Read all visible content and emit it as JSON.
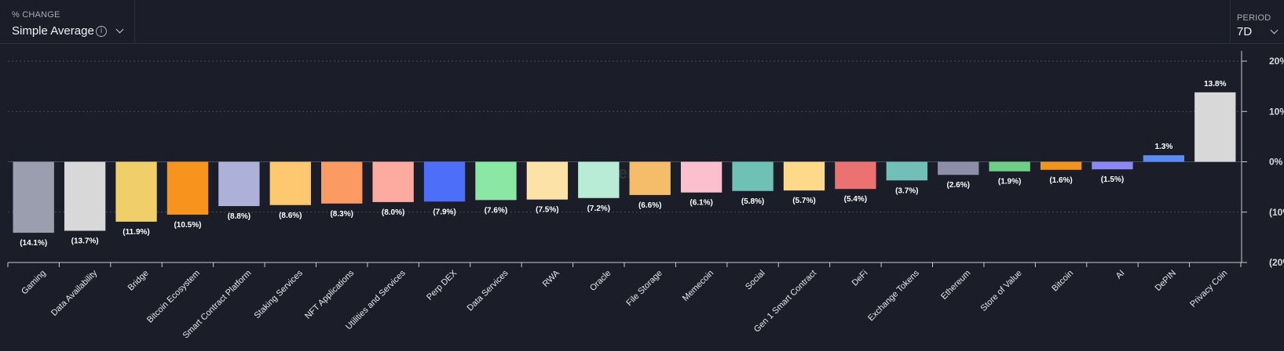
{
  "controls": {
    "change_caption": "% CHANGE",
    "change_value": "Simple Average",
    "info_glyph": "i",
    "period_caption": "PERIOD",
    "period_value": "7D"
  },
  "watermark": "Artemis",
  "colors": {
    "background": "#1b1d29",
    "grid": "#4a4d5c",
    "text": "#e6e7ee"
  },
  "chart_data": {
    "type": "bar",
    "title": "",
    "xlabel": "",
    "ylabel": "",
    "ylim": [
      -20,
      20
    ],
    "y_ticks": [
      20,
      10,
      0,
      -10,
      -20
    ],
    "y_tick_labels": [
      "20%",
      "10%",
      "0%",
      "(10%)",
      "(20%)"
    ],
    "grid": "horizontal dashed",
    "categories": [
      "Gaming",
      "Data Availability",
      "Bridge",
      "Bitcoin Ecosystem",
      "Smart Contract Platform",
      "Staking Services",
      "NFT Applications",
      "Utilities and Services",
      "Perp DEX",
      "Data Services",
      "RWA",
      "Oracle",
      "File Storage",
      "Memecoin",
      "Social",
      "Gen 1 Smart Contract",
      "DeFi",
      "Exchange Tokens",
      "Ethereum",
      "Store of Value",
      "Bitcoin",
      "AI",
      "DePIN",
      "Privacy Coin"
    ],
    "values": [
      -14.1,
      -13.7,
      -11.9,
      -10.5,
      -8.8,
      -8.6,
      -8.3,
      -8.0,
      -7.9,
      -7.6,
      -7.5,
      -7.2,
      -6.6,
      -6.1,
      -5.8,
      -5.7,
      -5.4,
      -3.7,
      -2.6,
      -1.9,
      -1.6,
      -1.5,
      1.3,
      13.8
    ],
    "value_labels": [
      "(14.1%)",
      "(13.7%)",
      "(11.9%)",
      "(10.5%)",
      "(8.8%)",
      "(8.6%)",
      "(8.3%)",
      "(8.0%)",
      "(7.9%)",
      "(7.6%)",
      "(7.5%)",
      "(7.2%)",
      "(6.6%)",
      "(6.1%)",
      "(5.8%)",
      "(5.7%)",
      "(5.4%)",
      "(3.7%)",
      "(2.6%)",
      "(1.9%)",
      "(1.6%)",
      "(1.5%)",
      "1.3%",
      "13.8%"
    ],
    "bar_colors": [
      "#9b9eae",
      "#d8d8d8",
      "#f0cf6b",
      "#f7941d",
      "#adb0d8",
      "#fdc86f",
      "#fb9a63",
      "#fdaba0",
      "#4d6ef8",
      "#8be8a4",
      "#fde2a8",
      "#b8ecd6",
      "#f5bc6a",
      "#fcbfcd",
      "#6ec1b4",
      "#ffd98a",
      "#ec7171",
      "#72bfb7",
      "#8b8fa8",
      "#6fcf86",
      "#f0931f",
      "#8b88f5",
      "#5b8cf3",
      "#d8d8d8"
    ]
  }
}
